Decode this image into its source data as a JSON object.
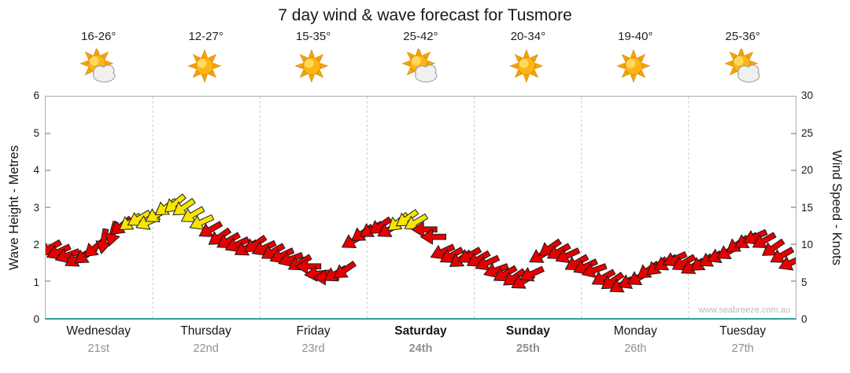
{
  "title": "7 day wind & wave forecast for Tusmore",
  "watermark": "www.seabreeze.com.au",
  "days": [
    {
      "name": "Wednesday",
      "date": "21st",
      "temp": "16-26°",
      "icon": "sun-cloud",
      "weekend": false
    },
    {
      "name": "Thursday",
      "date": "22nd",
      "temp": "12-27°",
      "icon": "sun",
      "weekend": false
    },
    {
      "name": "Friday",
      "date": "23rd",
      "temp": "15-35°",
      "icon": "sun",
      "weekend": false
    },
    {
      "name": "Saturday",
      "date": "24th",
      "temp": "25-42°",
      "icon": "sun-cloud",
      "weekend": true
    },
    {
      "name": "Sunday",
      "date": "25th",
      "temp": "20-34°",
      "icon": "sun",
      "weekend": true
    },
    {
      "name": "Monday",
      "date": "26th",
      "temp": "19-40°",
      "icon": "sun",
      "weekend": false
    },
    {
      "name": "Tuesday",
      "date": "27th",
      "temp": "25-36°",
      "icon": "sun-cloud",
      "weekend": false
    }
  ],
  "chart_data": {
    "type": "wind-arrow-series",
    "categories": [
      "Wednesday 21st",
      "Thursday 22nd",
      "Friday 23rd",
      "Saturday 24th",
      "Sunday 25th",
      "Monday 26th",
      "Tuesday 27th"
    ],
    "left_axis": {
      "label": "Wave Height - Metres",
      "ticks": [
        0,
        1,
        2,
        3,
        4,
        5,
        6
      ],
      "range": [
        0,
        6
      ]
    },
    "right_axis": {
      "label": "Wind Speed - Knots",
      "ticks": [
        0,
        5,
        10,
        15,
        20,
        25,
        30
      ],
      "range": [
        0,
        30
      ]
    },
    "grid": "vertical-dashed-day-boundaries",
    "arrow_colors": {
      "low": "#e60000",
      "high": "#f7e400",
      "outline": "#1a1a1a",
      "high_threshold_knots": 13
    },
    "samples_per_day": 12,
    "series_by_day": [
      {
        "knots": [
          9.5,
          9,
          8.5,
          8,
          8.5,
          9.5,
          10.5,
          11.5,
          12.5,
          13,
          13.5,
          13
        ],
        "dirs": [
          150,
          155,
          160,
          150,
          145,
          140,
          100,
          105,
          140,
          145,
          150,
          155
        ]
      },
      {
        "knots": [
          14,
          15,
          15.5,
          15,
          14,
          13,
          12,
          11,
          10.5,
          10,
          9.5,
          10
        ],
        "dirs": [
          150,
          145,
          140,
          145,
          150,
          155,
          150,
          145,
          150,
          155,
          150,
          145
        ]
      },
      {
        "knots": [
          9.5,
          9,
          8.5,
          8,
          7.5,
          7,
          6,
          5.5,
          6,
          6.5,
          10.5,
          11.5
        ],
        "dirs": [
          155,
          150,
          155,
          160,
          150,
          180,
          175,
          180,
          150,
          145,
          150,
          145
        ]
      },
      {
        "knots": [
          12,
          12.5,
          12,
          13,
          13.5,
          13,
          12,
          11,
          9,
          8.5,
          8,
          8.5
        ],
        "dirs": [
          150,
          145,
          150,
          140,
          145,
          150,
          180,
          180,
          155,
          150,
          145,
          150
        ]
      },
      {
        "knots": [
          8,
          7.5,
          6.5,
          6,
          5.5,
          5,
          6,
          8.5,
          9.5,
          9,
          8.5,
          7.5
        ],
        "dirs": [
          150,
          155,
          160,
          150,
          145,
          150,
          155,
          150,
          145,
          150,
          155,
          150
        ]
      },
      {
        "knots": [
          7,
          6.5,
          5.5,
          5,
          4.5,
          5,
          5.5,
          6.5,
          7,
          7.5,
          8,
          7.5
        ],
        "dirs": [
          155,
          160,
          150,
          145,
          150,
          155,
          150,
          145,
          140,
          150,
          155,
          150
        ]
      },
      {
        "knots": [
          7,
          7.5,
          8,
          8.5,
          9,
          10,
          10.5,
          11,
          10.5,
          9.5,
          8.5,
          7.5
        ],
        "dirs": [
          150,
          145,
          150,
          155,
          150,
          145,
          150,
          155,
          150,
          145,
          150,
          155
        ]
      }
    ]
  }
}
